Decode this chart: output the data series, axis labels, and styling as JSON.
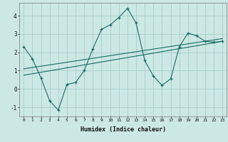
{
  "xlabel": "Humidex (Indice chaleur)",
  "background_color": "#cce8e5",
  "grid_color": "#a8ceca",
  "line_color": "#1a6b65",
  "xlim": [
    -0.5,
    23.5
  ],
  "ylim": [
    -1.5,
    4.7
  ],
  "yticks": [
    -1,
    0,
    1,
    2,
    3,
    4
  ],
  "xticks": [
    0,
    1,
    2,
    3,
    4,
    5,
    6,
    7,
    8,
    9,
    10,
    11,
    12,
    13,
    14,
    15,
    16,
    17,
    18,
    19,
    20,
    21,
    22,
    23
  ],
  "series1_x": [
    0,
    1,
    2,
    3,
    4,
    5,
    6,
    7,
    8,
    9,
    10,
    11,
    12,
    13,
    14,
    15,
    16,
    17,
    18,
    19,
    20,
    21,
    22,
    23
  ],
  "series1_y": [
    2.3,
    1.65,
    0.6,
    -0.65,
    -1.15,
    0.25,
    0.35,
    1.0,
    2.2,
    3.25,
    3.5,
    3.9,
    4.4,
    3.6,
    1.55,
    0.7,
    0.2,
    0.55,
    2.3,
    3.05,
    2.9,
    2.6,
    2.55,
    2.6
  ],
  "trend1_x": [
    0,
    23
  ],
  "trend1_y": [
    0.75,
    2.6
  ],
  "trend2_x": [
    0,
    23
  ],
  "trend2_y": [
    1.1,
    2.75
  ]
}
